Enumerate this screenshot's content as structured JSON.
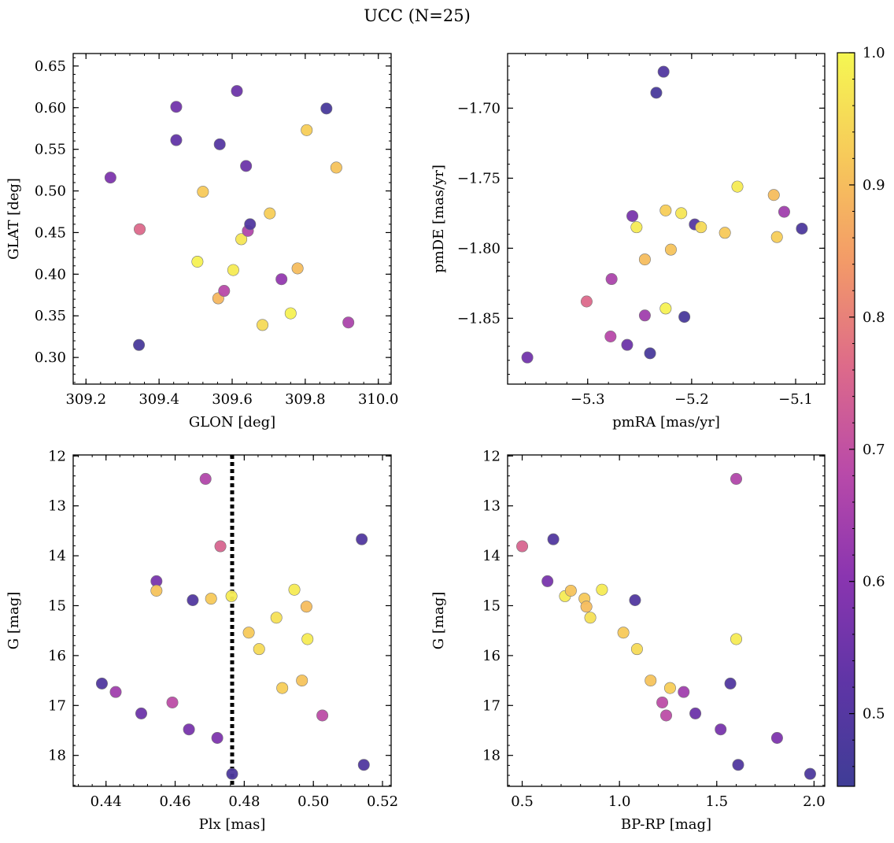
{
  "suptitle": "UCC (N=25)",
  "colorbar": {
    "min": 0.445,
    "max": 1.0,
    "ticks": [
      0.5,
      0.6,
      0.7,
      0.8,
      0.9,
      1.0
    ],
    "tick_labels": [
      "0.5",
      "0.6",
      "0.7",
      "0.8",
      "0.9",
      "1.0"
    ],
    "colormap": "plasma",
    "stops": [
      "#3f3d96",
      "#5f35a6",
      "#8a35b0",
      "#b94aa9",
      "#dd6a8a",
      "#f39a68",
      "#f7c95a",
      "#f5f752"
    ]
  },
  "chart_data": [
    {
      "id": "glon_glat",
      "type": "scatter",
      "xlabel": "GLON [deg]",
      "ylabel": "GLAT [deg]",
      "xlim": [
        309.165,
        310.035
      ],
      "ylim": [
        0.268,
        0.665
      ],
      "xticks": [
        309.2,
        309.4,
        309.6,
        309.8,
        310.0
      ],
      "xtick_labels": [
        "309.2",
        "309.4",
        "309.6",
        "309.8",
        "310.0"
      ],
      "yticks": [
        0.3,
        0.35,
        0.4,
        0.45,
        0.5,
        0.55,
        0.6,
        0.65
      ],
      "ytick_labels": [
        "0.30",
        "0.35",
        "0.40",
        "0.45",
        "0.50",
        "0.55",
        "0.60",
        "0.65"
      ],
      "points": [
        {
          "x": 309.267,
          "y": 0.516,
          "c": 0.58
        },
        {
          "x": 309.347,
          "y": 0.454,
          "c": 0.76
        },
        {
          "x": 309.345,
          "y": 0.315,
          "c": 0.47
        },
        {
          "x": 309.447,
          "y": 0.601,
          "c": 0.56
        },
        {
          "x": 309.447,
          "y": 0.561,
          "c": 0.53
        },
        {
          "x": 309.52,
          "y": 0.499,
          "c": 0.92
        },
        {
          "x": 309.505,
          "y": 0.415,
          "c": 0.99
        },
        {
          "x": 309.566,
          "y": 0.556,
          "c": 0.5
        },
        {
          "x": 309.562,
          "y": 0.371,
          "c": 0.89
        },
        {
          "x": 309.578,
          "y": 0.38,
          "c": 0.68
        },
        {
          "x": 309.603,
          "y": 0.405,
          "c": 0.98
        },
        {
          "x": 309.613,
          "y": 0.62,
          "c": 0.55
        },
        {
          "x": 309.625,
          "y": 0.442,
          "c": 0.97
        },
        {
          "x": 309.638,
          "y": 0.53,
          "c": 0.55
        },
        {
          "x": 309.643,
          "y": 0.452,
          "c": 0.67
        },
        {
          "x": 309.649,
          "y": 0.46,
          "c": 0.49
        },
        {
          "x": 309.683,
          "y": 0.339,
          "c": 0.95
        },
        {
          "x": 309.703,
          "y": 0.473,
          "c": 0.93
        },
        {
          "x": 309.735,
          "y": 0.394,
          "c": 0.62
        },
        {
          "x": 309.76,
          "y": 0.353,
          "c": 0.99
        },
        {
          "x": 309.779,
          "y": 0.407,
          "c": 0.9
        },
        {
          "x": 309.804,
          "y": 0.573,
          "c": 0.93
        },
        {
          "x": 309.858,
          "y": 0.599,
          "c": 0.47
        },
        {
          "x": 309.885,
          "y": 0.528,
          "c": 0.91
        },
        {
          "x": 309.918,
          "y": 0.342,
          "c": 0.66
        }
      ]
    },
    {
      "id": "pmra_pmde",
      "type": "scatter",
      "xlabel": "pmRA [mas/yr]",
      "ylabel": "pmDE [mas/yr]",
      "xlim": [
        -5.377,
        -5.072
      ],
      "ylim": [
        -1.897,
        -1.661
      ],
      "xticks": [
        -5.3,
        -5.2,
        -5.1
      ],
      "xtick_labels": [
        "−5.3",
        "−5.2",
        "−5.1"
      ],
      "yticks": [
        -1.7,
        -1.75,
        -1.8,
        -1.85
      ],
      "ytick_labels": [
        "−1.70",
        "−1.75",
        "−1.80",
        "−1.85"
      ],
      "points": [
        {
          "x": -5.358,
          "y": -1.878,
          "c": 0.56
        },
        {
          "x": -5.301,
          "y": -1.838,
          "c": 0.76
        },
        {
          "x": -5.278,
          "y": -1.863,
          "c": 0.68
        },
        {
          "x": -5.277,
          "y": -1.822,
          "c": 0.66
        },
        {
          "x": -5.262,
          "y": -1.869,
          "c": 0.55
        },
        {
          "x": -5.257,
          "y": -1.777,
          "c": 0.57
        },
        {
          "x": -5.253,
          "y": -1.785,
          "c": 0.98
        },
        {
          "x": -5.245,
          "y": -1.808,
          "c": 0.9
        },
        {
          "x": -5.245,
          "y": -1.848,
          "c": 0.64
        },
        {
          "x": -5.24,
          "y": -1.875,
          "c": 0.47
        },
        {
          "x": -5.234,
          "y": -1.689,
          "c": 0.47
        },
        {
          "x": -5.227,
          "y": -1.674,
          "c": 0.49
        },
        {
          "x": -5.225,
          "y": -1.773,
          "c": 0.93
        },
        {
          "x": -5.225,
          "y": -1.843,
          "c": 0.99
        },
        {
          "x": -5.22,
          "y": -1.801,
          "c": 0.91
        },
        {
          "x": -5.21,
          "y": -1.775,
          "c": 0.97
        },
        {
          "x": -5.207,
          "y": -1.849,
          "c": 0.47
        },
        {
          "x": -5.197,
          "y": -1.783,
          "c": 0.5
        },
        {
          "x": -5.191,
          "y": -1.785,
          "c": 0.95
        },
        {
          "x": -5.168,
          "y": -1.789,
          "c": 0.92
        },
        {
          "x": -5.156,
          "y": -1.756,
          "c": 0.98
        },
        {
          "x": -5.121,
          "y": -1.762,
          "c": 0.9
        },
        {
          "x": -5.118,
          "y": -1.792,
          "c": 0.93
        },
        {
          "x": -5.111,
          "y": -1.774,
          "c": 0.64
        },
        {
          "x": -5.094,
          "y": -1.786,
          "c": 0.48
        }
      ]
    },
    {
      "id": "plx_g",
      "type": "scatter",
      "xlabel": "Plx [mas]",
      "ylabel": "G [mag]",
      "xlim": [
        0.4305,
        0.5225
      ],
      "ylim": [
        18.62,
        11.98
      ],
      "xticks": [
        0.44,
        0.46,
        0.48,
        0.5,
        0.52
      ],
      "xtick_labels": [
        "0.44",
        "0.46",
        "0.48",
        "0.50",
        "0.52"
      ],
      "yticks": [
        12,
        13,
        14,
        15,
        16,
        17,
        18
      ],
      "ytick_labels": [
        "12",
        "13",
        "14",
        "15",
        "16",
        "17",
        "18"
      ],
      "vline": 0.4765,
      "points": [
        {
          "x": 0.4388,
          "y": 16.56,
          "c": 0.49
        },
        {
          "x": 0.4428,
          "y": 16.73,
          "c": 0.64
        },
        {
          "x": 0.4502,
          "y": 17.16,
          "c": 0.55
        },
        {
          "x": 0.4546,
          "y": 14.51,
          "c": 0.57
        },
        {
          "x": 0.4546,
          "y": 14.7,
          "c": 0.91
        },
        {
          "x": 0.4592,
          "y": 16.94,
          "c": 0.69
        },
        {
          "x": 0.464,
          "y": 17.48,
          "c": 0.57
        },
        {
          "x": 0.4651,
          "y": 14.89,
          "c": 0.49
        },
        {
          "x": 0.4688,
          "y": 12.46,
          "c": 0.67
        },
        {
          "x": 0.4704,
          "y": 14.86,
          "c": 0.92
        },
        {
          "x": 0.4722,
          "y": 17.65,
          "c": 0.58
        },
        {
          "x": 0.4731,
          "y": 13.81,
          "c": 0.75
        },
        {
          "x": 0.4763,
          "y": 14.81,
          "c": 0.98
        },
        {
          "x": 0.4765,
          "y": 18.37,
          "c": 0.48
        },
        {
          "x": 0.4813,
          "y": 15.54,
          "c": 0.92
        },
        {
          "x": 0.4843,
          "y": 15.87,
          "c": 0.95
        },
        {
          "x": 0.4893,
          "y": 15.24,
          "c": 0.96
        },
        {
          "x": 0.491,
          "y": 16.65,
          "c": 0.93
        },
        {
          "x": 0.4945,
          "y": 14.68,
          "c": 0.98
        },
        {
          "x": 0.4967,
          "y": 16.5,
          "c": 0.91
        },
        {
          "x": 0.498,
          "y": 15.02,
          "c": 0.9
        },
        {
          "x": 0.4983,
          "y": 15.67,
          "c": 0.98
        },
        {
          "x": 0.5026,
          "y": 17.2,
          "c": 0.69
        },
        {
          "x": 0.514,
          "y": 13.67,
          "c": 0.49
        },
        {
          "x": 0.5146,
          "y": 18.19,
          "c": 0.49
        }
      ]
    },
    {
      "id": "bprp_g",
      "type": "scatter",
      "xlabel": "BP-RP [mag]",
      "ylabel": "G [mag]",
      "xlim": [
        0.425,
        2.055
      ],
      "ylim": [
        18.62,
        11.98
      ],
      "xticks": [
        0.5,
        1.0,
        1.5,
        2.0
      ],
      "xtick_labels": [
        "0.5",
        "1.0",
        "1.5",
        "2.0"
      ],
      "yticks": [
        12,
        13,
        14,
        15,
        16,
        17,
        18
      ],
      "ytick_labels": [
        "12",
        "13",
        "14",
        "15",
        "16",
        "17",
        "18"
      ],
      "points": [
        {
          "x": 0.5,
          "y": 13.81,
          "c": 0.75
        },
        {
          "x": 0.63,
          "y": 14.51,
          "c": 0.57
        },
        {
          "x": 0.66,
          "y": 13.67,
          "c": 0.49
        },
        {
          "x": 0.72,
          "y": 14.81,
          "c": 0.98
        },
        {
          "x": 0.75,
          "y": 14.7,
          "c": 0.91
        },
        {
          "x": 0.82,
          "y": 14.86,
          "c": 0.92
        },
        {
          "x": 0.83,
          "y": 15.02,
          "c": 0.9
        },
        {
          "x": 0.85,
          "y": 15.24,
          "c": 0.96
        },
        {
          "x": 0.91,
          "y": 14.68,
          "c": 0.98
        },
        {
          "x": 1.02,
          "y": 15.54,
          "c": 0.92
        },
        {
          "x": 1.08,
          "y": 14.89,
          "c": 0.49
        },
        {
          "x": 1.09,
          "y": 15.87,
          "c": 0.95
        },
        {
          "x": 1.16,
          "y": 16.5,
          "c": 0.91
        },
        {
          "x": 1.22,
          "y": 16.94,
          "c": 0.69
        },
        {
          "x": 1.24,
          "y": 17.2,
          "c": 0.69
        },
        {
          "x": 1.26,
          "y": 16.65,
          "c": 0.93
        },
        {
          "x": 1.33,
          "y": 16.73,
          "c": 0.64
        },
        {
          "x": 1.39,
          "y": 17.16,
          "c": 0.55
        },
        {
          "x": 1.52,
          "y": 17.48,
          "c": 0.57
        },
        {
          "x": 1.57,
          "y": 16.56,
          "c": 0.49
        },
        {
          "x": 1.6,
          "y": 12.46,
          "c": 0.67
        },
        {
          "x": 1.6,
          "y": 15.67,
          "c": 0.98
        },
        {
          "x": 1.61,
          "y": 18.19,
          "c": 0.49
        },
        {
          "x": 1.81,
          "y": 17.65,
          "c": 0.58
        },
        {
          "x": 1.98,
          "y": 18.37,
          "c": 0.48
        }
      ]
    }
  ]
}
